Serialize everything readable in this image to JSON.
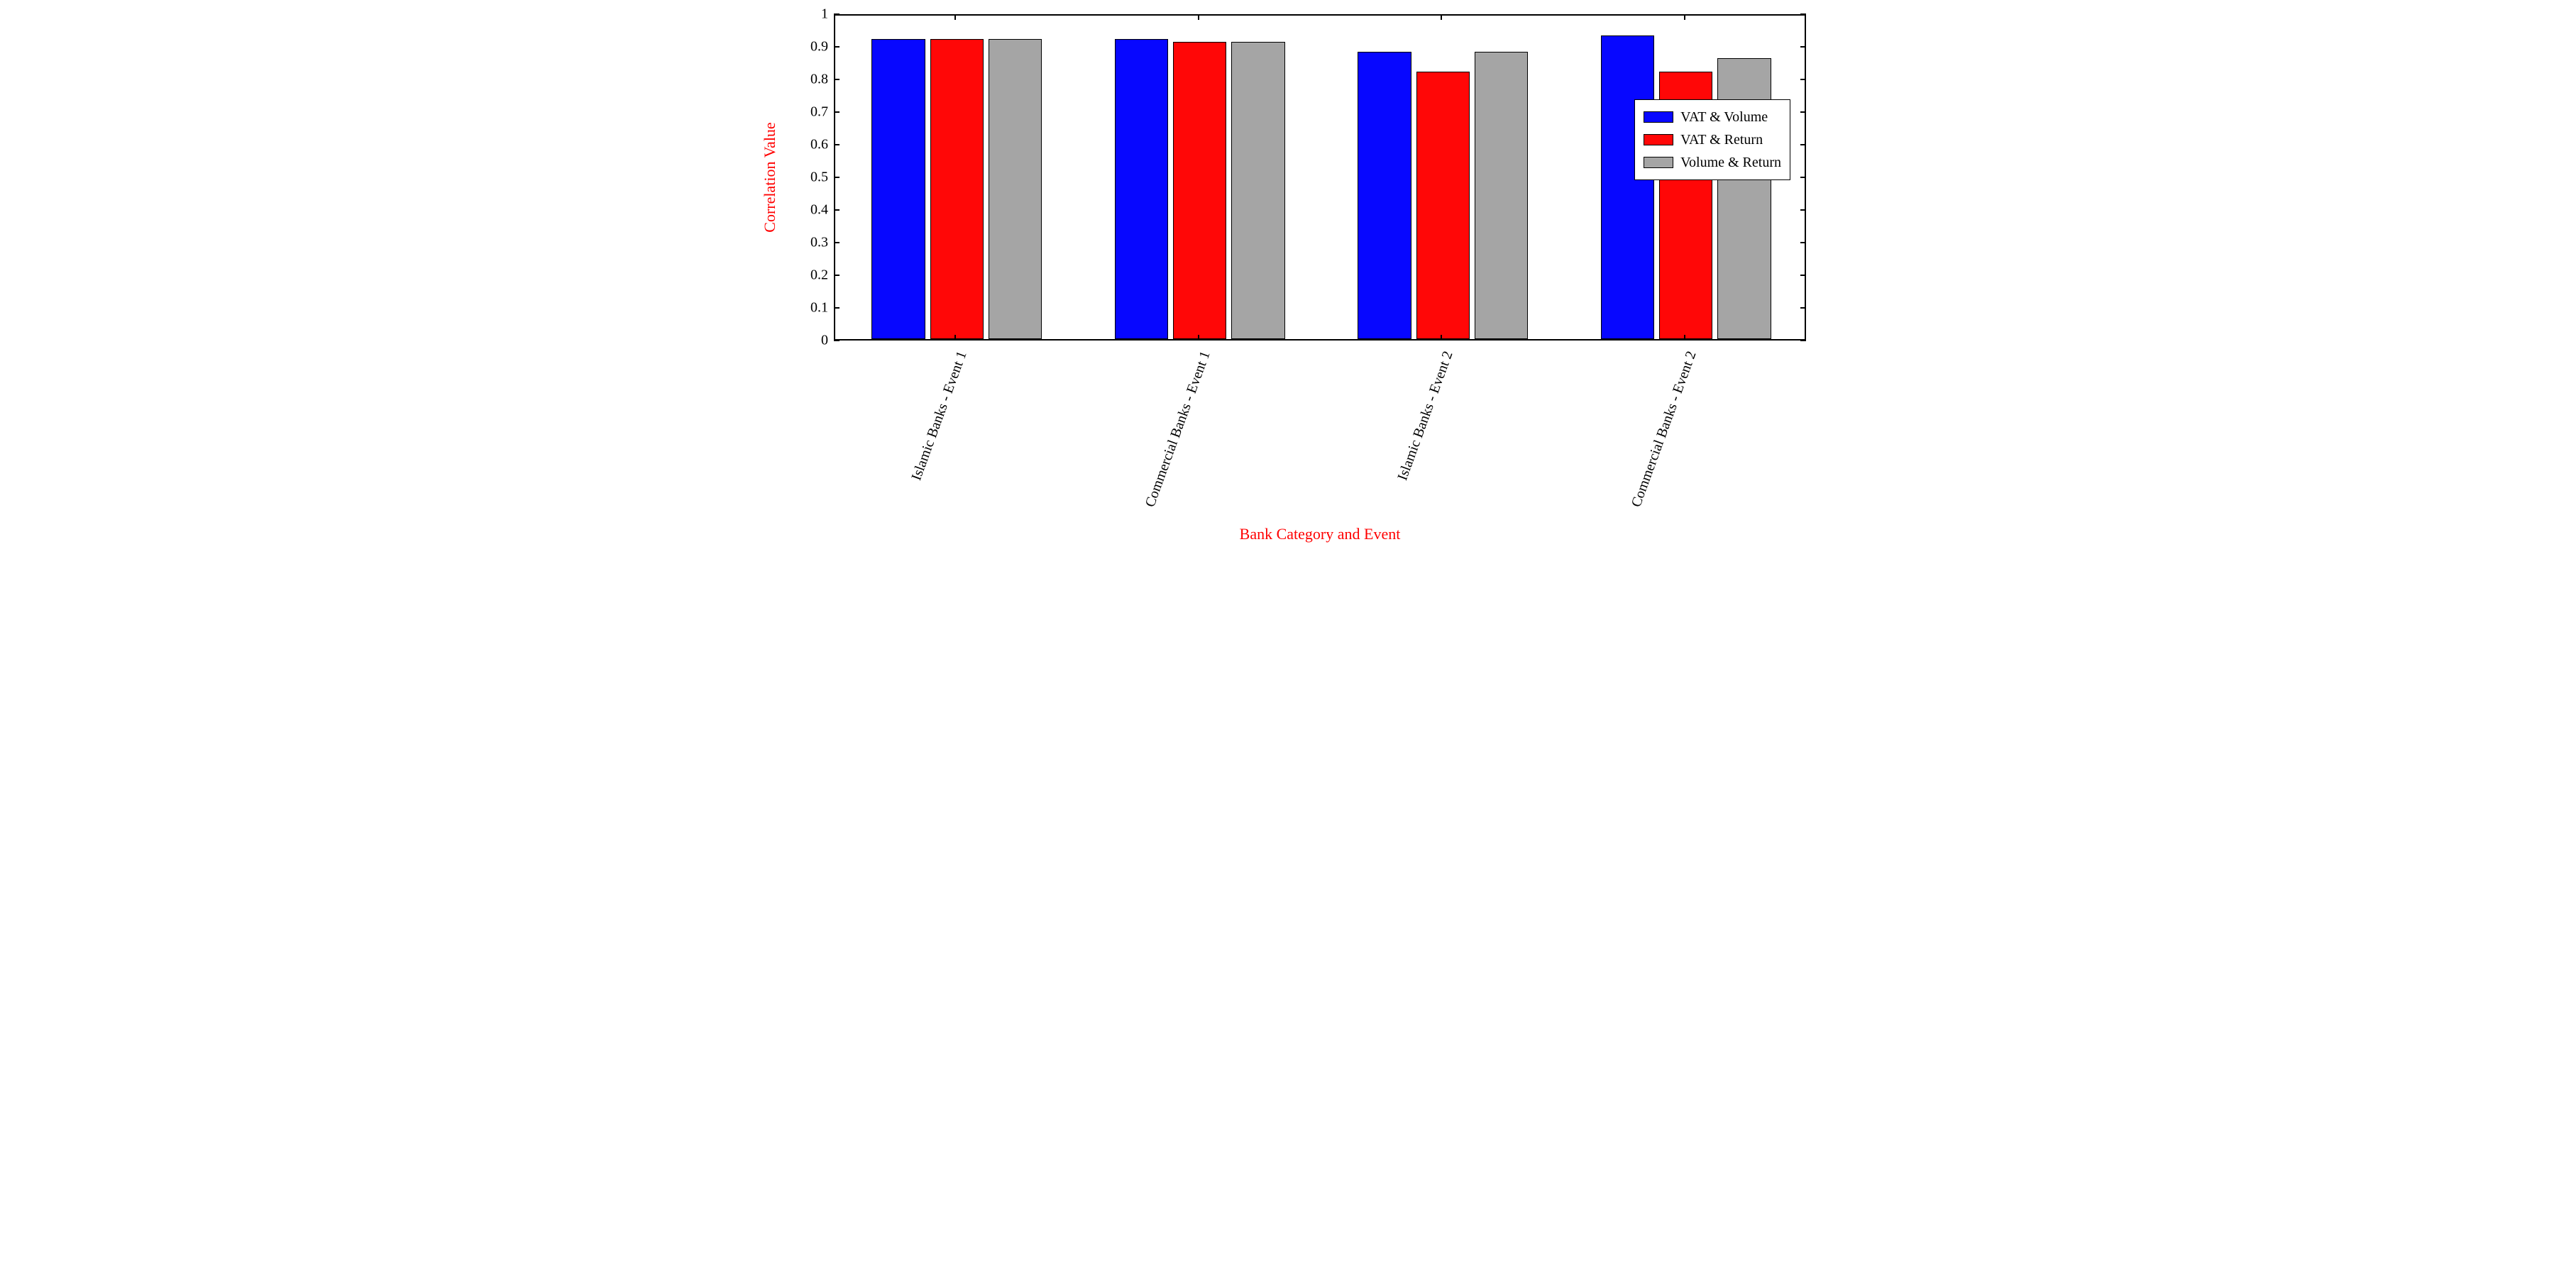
{
  "chart": {
    "type": "bar",
    "background_color": "#ffffff",
    "border_color": "#000000",
    "xlabel": "Bank Category and Event",
    "ylabel": "Correlation Value",
    "label_color": "#ff0000",
    "label_fontsize": 22,
    "tick_fontsize": 20,
    "categories": [
      "Islamic Banks - Event 1",
      "Commercial Banks - Event 1",
      "Islamic Banks - Event 2",
      "Commercial Banks - Event 2"
    ],
    "series": [
      {
        "name": "VAT & Volume",
        "color": "#0707ff",
        "values": [
          0.92,
          0.92,
          0.88,
          0.93
        ]
      },
      {
        "name": "VAT & Return",
        "color": "#ff0707",
        "values": [
          0.92,
          0.91,
          0.82,
          0.82
        ]
      },
      {
        "name": "Volume & Return",
        "color": "#a5a5a5",
        "values": [
          0.92,
          0.91,
          0.88,
          0.86
        ]
      }
    ],
    "ylim": [
      0,
      1
    ],
    "ytick_step": 0.1,
    "yticks": [
      "0",
      "0.1",
      "0.2",
      "0.3",
      "0.4",
      "0.5",
      "0.6",
      "0.7",
      "0.8",
      "0.9",
      "1"
    ],
    "bar_width": 0.22,
    "bar_gap": 0.02,
    "legend": {
      "position": "right",
      "border_color": "#000000",
      "background": "#ffffff",
      "fontsize": 20
    }
  }
}
